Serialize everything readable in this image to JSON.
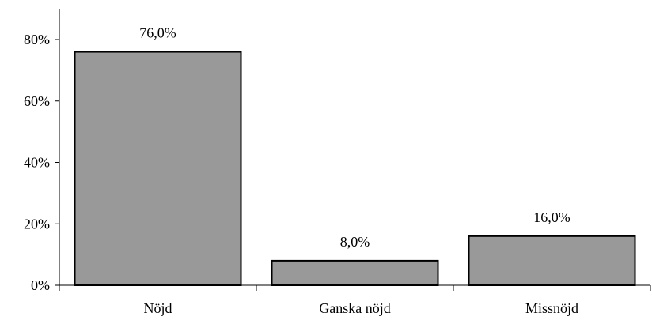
{
  "chart_data": {
    "type": "bar",
    "title": "",
    "xlabel": "",
    "ylabel": "",
    "categories": [
      "Nöjd",
      "Ganska nöjd",
      "Missnöjd"
    ],
    "values": [
      76.0,
      8.0,
      16.0
    ],
    "data_labels": [
      "76,0%",
      "8,0%",
      "16,0%"
    ],
    "ylim": [
      0,
      80
    ],
    "y_ticks": [
      0,
      20,
      40,
      60,
      80
    ],
    "y_tick_labels": [
      "0%",
      "20%",
      "40%",
      "60%",
      "80%"
    ],
    "grid": false,
    "legend": "none",
    "colors": {
      "bar_fill": "#999999",
      "bar_stroke": "#000000"
    }
  }
}
